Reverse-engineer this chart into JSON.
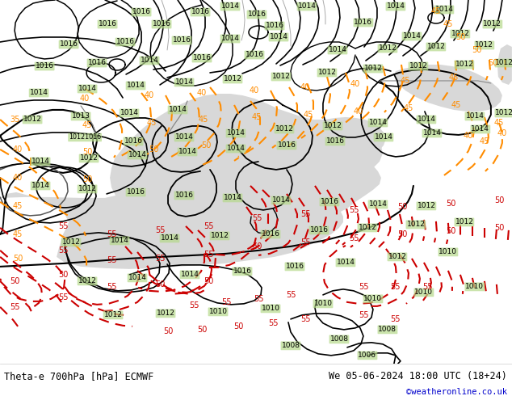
{
  "title_left": "Theta-e 700hPa [hPa] ECMWF",
  "title_right": "We 05-06-2024 18:00 UTC (18+24)",
  "credit": "©weatheronline.co.uk",
  "land_color": "#b5d98a",
  "sea_color": "#d8d8d8",
  "border_thick_color": "#000000",
  "border_thin_color": "#888888",
  "isobar_color": "#000000",
  "theta_orange_color": "#ff8c00",
  "theta_red_color": "#cc0000",
  "credit_color": "#0000cc",
  "figsize": [
    6.34,
    4.9
  ],
  "dpi": 100
}
